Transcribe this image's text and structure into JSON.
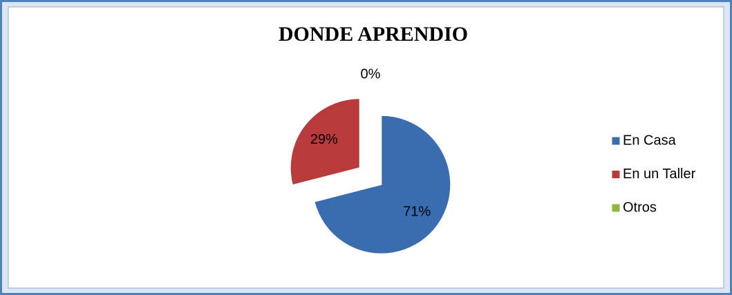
{
  "chart_data": {
    "type": "pie",
    "title": "DONDE APRENDIO",
    "categories": [
      "En Casa",
      "En un Taller",
      "Otros"
    ],
    "values": [
      71,
      29,
      0
    ],
    "value_labels": [
      "71%",
      "29%",
      "0%"
    ],
    "colors": [
      "#3a6db0",
      "#b83a3a",
      "#8fb83a"
    ],
    "legend": "right"
  }
}
